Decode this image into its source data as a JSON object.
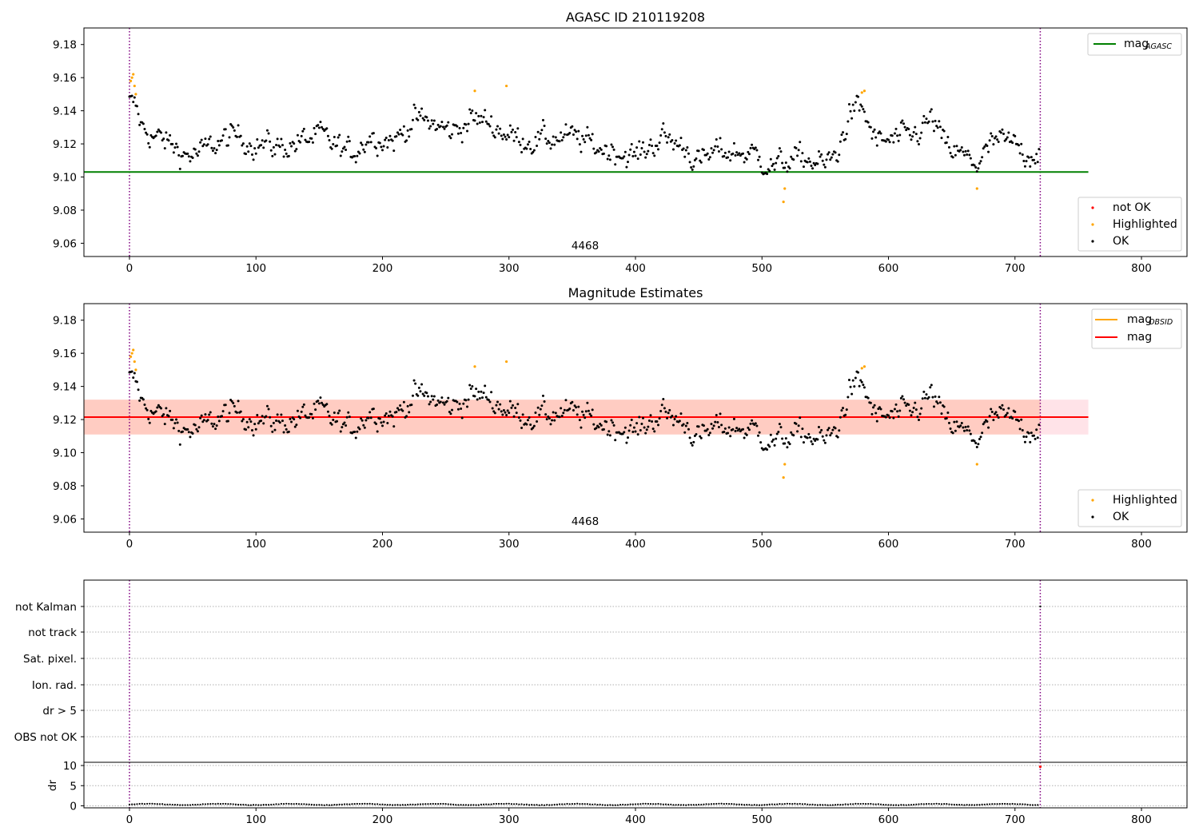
{
  "figure": {
    "obsid_label": "4468",
    "colors": {
      "ok": "#000000",
      "highlighted": "#ffa500",
      "not_ok": "#ff0000",
      "agasc_line": "#008000",
      "mean_line": "#ff0000",
      "obsid_line": "#ffa500",
      "obsid_separator": "#800080",
      "band_obsid": "#ffa07a",
      "band_mean": "#ffc0cb"
    }
  },
  "chart_data": [
    {
      "type": "scatter",
      "title": "AGASC ID 210119208",
      "xlabel": "",
      "ylabel": "",
      "xlim": [
        -36,
        836
      ],
      "ylim": [
        9.052,
        9.19
      ],
      "x_ticks": [
        0,
        100,
        200,
        300,
        400,
        500,
        600,
        700,
        800
      ],
      "y_ticks": [
        9.06,
        9.08,
        9.1,
        9.12,
        9.14,
        9.16,
        9.18
      ],
      "y_tick_labels": [
        "9.06",
        "9.08",
        "9.10",
        "9.12",
        "9.14",
        "9.16",
        "9.18"
      ],
      "grid": false,
      "mag_agasc": 9.103,
      "obsid_bounds": [
        0,
        720
      ],
      "legend_top": {
        "placement": "upper right",
        "entries": [
          {
            "label": "mag",
            "subscript": "AGASC",
            "color": "#008000"
          }
        ]
      },
      "legend_bottom": {
        "placement": "lower right",
        "entries": [
          {
            "label": "not OK",
            "color": "#ff0000"
          },
          {
            "label": "Highlighted",
            "color": "#ffa500"
          },
          {
            "label": "OK",
            "color": "#000000"
          }
        ]
      },
      "series": [
        {
          "name": "OK",
          "trend": [
            [
              0,
              9.145
            ],
            [
              5,
              9.142
            ],
            [
              10,
              9.13
            ],
            [
              20,
              9.124
            ],
            [
              30,
              9.121
            ],
            [
              45,
              9.113
            ],
            [
              55,
              9.114
            ],
            [
              70,
              9.121
            ],
            [
              85,
              9.125
            ],
            [
              100,
              9.12
            ],
            [
              120,
              9.118
            ],
            [
              135,
              9.121
            ],
            [
              150,
              9.125
            ],
            [
              165,
              9.118
            ],
            [
              175,
              9.114
            ],
            [
              190,
              9.125
            ],
            [
              210,
              9.122
            ],
            [
              225,
              9.135
            ],
            [
              240,
              9.132
            ],
            [
              255,
              9.127
            ],
            [
              270,
              9.135
            ],
            [
              285,
              9.133
            ],
            [
              300,
              9.125
            ],
            [
              320,
              9.122
            ],
            [
              340,
              9.124
            ],
            [
              355,
              9.123
            ],
            [
              370,
              9.118
            ],
            [
              385,
              9.116
            ],
            [
              400,
              9.112
            ],
            [
              420,
              9.124
            ],
            [
              440,
              9.118
            ],
            [
              450,
              9.108
            ],
            [
              465,
              9.116
            ],
            [
              480,
              9.115
            ],
            [
              495,
              9.113
            ],
            [
              510,
              9.106
            ],
            [
              520,
              9.11
            ],
            [
              535,
              9.111
            ],
            [
              550,
              9.107
            ],
            [
              560,
              9.115
            ],
            [
              570,
              9.14
            ],
            [
              580,
              9.14
            ],
            [
              590,
              9.121
            ],
            [
              605,
              9.122
            ],
            [
              620,
              9.125
            ],
            [
              635,
              9.135
            ],
            [
              645,
              9.118
            ],
            [
              660,
              9.112
            ],
            [
              670,
              9.108
            ],
            [
              685,
              9.122
            ],
            [
              700,
              9.119
            ],
            [
              710,
              9.114
            ],
            [
              720,
              9.116
            ]
          ],
          "noise": 0.0085,
          "n_points": 720
        },
        {
          "name": "Highlighted",
          "points": [
            [
              1,
              9.158
            ],
            [
              2,
              9.16
            ],
            [
              3,
              9.162
            ],
            [
              4,
              9.155
            ],
            [
              5,
              9.15
            ],
            [
              273,
              9.152
            ],
            [
              298,
              9.155
            ],
            [
              517,
              9.085
            ],
            [
              518,
              9.093
            ],
            [
              579,
              9.151
            ],
            [
              581,
              9.152
            ],
            [
              670,
              9.093
            ]
          ]
        },
        {
          "name": "not OK",
          "points": []
        }
      ]
    },
    {
      "type": "scatter",
      "title": "Magnitude Estimates",
      "xlabel": "",
      "ylabel": "",
      "xlim": [
        -36,
        836
      ],
      "ylim": [
        9.052,
        9.19
      ],
      "x_ticks": [
        0,
        100,
        200,
        300,
        400,
        500,
        600,
        700,
        800
      ],
      "y_ticks": [
        9.06,
        9.08,
        9.1,
        9.12,
        9.14,
        9.16,
        9.18
      ],
      "y_tick_labels": [
        "9.06",
        "9.08",
        "9.10",
        "9.12",
        "9.14",
        "9.16",
        "9.18"
      ],
      "grid": false,
      "mag": 9.1215,
      "mag_band": [
        9.111,
        9.132
      ],
      "mag_obsid": 9.1215,
      "mag_obsid_band": [
        9.111,
        9.132
      ],
      "obsid_bounds": [
        0,
        720
      ],
      "legend_top": {
        "placement": "upper right",
        "entries": [
          {
            "label": "mag",
            "subscript": "OBSID",
            "color": "#ffa500"
          },
          {
            "label": "mag",
            "subscript": "",
            "color": "#ff0000"
          }
        ]
      },
      "legend_bottom": {
        "placement": "lower right",
        "entries": [
          {
            "label": "Highlighted",
            "color": "#ffa500"
          },
          {
            "label": "OK",
            "color": "#000000"
          }
        ]
      },
      "series_ref": "same as panel 1"
    },
    {
      "type": "scatter",
      "title": "",
      "xlabel": "",
      "ylabel": "",
      "xlim": [
        -36,
        836
      ],
      "categories": [
        "not Kalman",
        "not track",
        "Sat. pixel.",
        "Ion. rad.",
        "dr > 5",
        "OBS not OK"
      ],
      "flags": {
        "not_kalman": [
          [
            720,
            1
          ]
        ]
      },
      "grid": true
    },
    {
      "type": "line",
      "title": "",
      "xlabel": "",
      "ylabel": "dr",
      "xlim": [
        -36,
        836
      ],
      "ylim": [
        -0.5,
        10.8
      ],
      "x_ticks": [
        0,
        100,
        200,
        300,
        400,
        500,
        600,
        700,
        800
      ],
      "y_ticks": [
        0,
        5,
        10
      ],
      "grid": true,
      "baseline": 0.3,
      "outliers": [
        [
          720,
          9.7
        ]
      ]
    }
  ]
}
